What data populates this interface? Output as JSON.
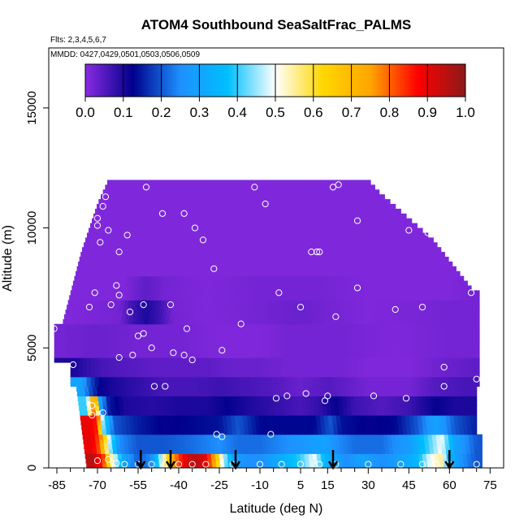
{
  "chart_data": {
    "type": "heatmap",
    "title": "ATOM4 Southbound SeaSaltFrac_PALMS",
    "subtitle_flights": "Flts: 2,3,4,5,6,7",
    "subtitle_dates": "MMDD: 0427,0429,0501,0503,0506,0509",
    "xlabel": "Latitude (deg N)",
    "ylabel": "Altitude (m)",
    "xlim": [
      -88,
      80
    ],
    "ylim": [
      0,
      17500
    ],
    "x_ticks": [
      -85,
      -70,
      -55,
      -40,
      -25,
      -10,
      5,
      15,
      30,
      45,
      60,
      75
    ],
    "x_tick_labels": [
      "-85",
      "-70",
      "-55",
      "-40",
      "-25",
      "-10",
      "5",
      "15",
      "30",
      "45",
      "60",
      "75"
    ],
    "x_minor_ticks": [
      -80,
      -75,
      -65,
      -60,
      -50,
      -45,
      -35,
      -30,
      -20,
      -15,
      -5,
      0,
      10,
      20,
      25,
      35,
      40,
      50,
      55,
      65,
      70
    ],
    "y_ticks": [
      0,
      5000,
      10000,
      15000
    ],
    "y_tick_labels": [
      "0",
      "5000",
      "10000",
      "15000"
    ],
    "colorbar": {
      "range": [
        0,
        1
      ],
      "tick_values": [
        0.0,
        0.1,
        0.2,
        0.3,
        0.4,
        0.5,
        0.6,
        0.7,
        0.8,
        0.9,
        1.0
      ],
      "tick_labels": [
        "0.0",
        "0.1",
        "0.2",
        "0.3",
        "0.4",
        "0.5",
        "0.6",
        "0.7",
        "0.8",
        "0.9",
        "1.0"
      ],
      "colors": [
        "#8a2be2",
        "#00008b",
        "#1e90ff",
        "#00bfff",
        "#ffffff",
        "#ffd700",
        "#ffa500",
        "#ff0000",
        "#8b1a1a"
      ]
    },
    "arrows_latitude": [
      -54,
      -43,
      -19,
      17,
      60
    ],
    "marker_color": "#ffffff",
    "description_note": "",
    "layers": [
      {
        "alt_min": 0,
        "alt_max": 600,
        "values": [
          [
            -72,
            0.95
          ],
          [
            -68,
            0.85
          ],
          [
            -65,
            0.55
          ],
          [
            -60,
            0.3
          ],
          [
            -55,
            0.2
          ],
          [
            -50,
            0.25
          ],
          [
            -46,
            0.5
          ],
          [
            -42,
            0.75
          ],
          [
            -38,
            0.9
          ],
          [
            -34,
            0.95
          ],
          [
            -30,
            0.9
          ],
          [
            -27,
            0.75
          ],
          [
            -24,
            0.5
          ],
          [
            -20,
            0.3
          ],
          [
            -15,
            0.25
          ],
          [
            -10,
            0.25
          ],
          [
            -5,
            0.3
          ],
          [
            0,
            0.35
          ],
          [
            5,
            0.4
          ],
          [
            10,
            0.5
          ],
          [
            14,
            0.35
          ],
          [
            18,
            0.3
          ],
          [
            22,
            0.25
          ],
          [
            28,
            0.3
          ],
          [
            35,
            0.25
          ],
          [
            42,
            0.3
          ],
          [
            48,
            0.35
          ],
          [
            53,
            0.5
          ],
          [
            57,
            0.55
          ],
          [
            60,
            0.35
          ],
          [
            65,
            0.25
          ],
          [
            70,
            0.2
          ]
        ]
      },
      {
        "alt_min": 600,
        "alt_max": 1400,
        "values": [
          [
            -72,
            0.9
          ],
          [
            -69,
            0.8
          ],
          [
            -66,
            0.5
          ],
          [
            -62,
            0.25
          ],
          [
            -55,
            0.2
          ],
          [
            -45,
            0.2
          ],
          [
            -35,
            0.22
          ],
          [
            -25,
            0.25
          ],
          [
            -18,
            0.22
          ],
          [
            -10,
            0.22
          ],
          [
            0,
            0.25
          ],
          [
            8,
            0.28
          ],
          [
            14,
            0.3
          ],
          [
            18,
            0.25
          ],
          [
            25,
            0.22
          ],
          [
            35,
            0.22
          ],
          [
            45,
            0.28
          ],
          [
            52,
            0.4
          ],
          [
            57,
            0.5
          ],
          [
            62,
            0.3
          ],
          [
            70,
            0.2
          ]
        ]
      },
      {
        "alt_min": 1400,
        "alt_max": 2200,
        "values": [
          [
            -73,
            0.9
          ],
          [
            -70,
            0.85
          ],
          [
            -68,
            0.45
          ],
          [
            -64,
            0.2
          ],
          [
            -55,
            0.15
          ],
          [
            -45,
            0.12
          ],
          [
            -35,
            0.13
          ],
          [
            -25,
            0.14
          ],
          [
            -18,
            0.2
          ],
          [
            -10,
            0.13
          ],
          [
            0,
            0.13
          ],
          [
            10,
            0.13
          ],
          [
            16,
            0.2
          ],
          [
            20,
            0.14
          ],
          [
            30,
            0.12
          ],
          [
            40,
            0.13
          ],
          [
            48,
            0.2
          ],
          [
            55,
            0.3
          ],
          [
            62,
            0.2
          ],
          [
            70,
            0.15
          ]
        ]
      },
      {
        "alt_min": 2200,
        "alt_max": 3000,
        "values": [
          [
            -74,
            0.4
          ],
          [
            -71,
            0.85
          ],
          [
            -69,
            0.3
          ],
          [
            -66,
            0.15
          ],
          [
            -60,
            0.1
          ],
          [
            -50,
            0.09
          ],
          [
            -40,
            0.1
          ],
          [
            -30,
            0.1
          ],
          [
            -22,
            0.12
          ],
          [
            -15,
            0.1
          ],
          [
            -5,
            0.08
          ],
          [
            5,
            0.06
          ],
          [
            12,
            0.08
          ],
          [
            18,
            0.12
          ],
          [
            25,
            0.07
          ],
          [
            35,
            0.05
          ],
          [
            45,
            0.07
          ],
          [
            55,
            0.12
          ],
          [
            62,
            0.1
          ],
          [
            70,
            0.1
          ]
        ]
      },
      {
        "alt_min": 3000,
        "alt_max": 3800,
        "values": [
          [
            -76,
            0.3
          ],
          [
            -73,
            0.2
          ],
          [
            -69,
            0.12
          ],
          [
            -64,
            0.1
          ],
          [
            -55,
            0.08
          ],
          [
            -45,
            0.06
          ],
          [
            -35,
            0.06
          ],
          [
            -25,
            0.07
          ],
          [
            -15,
            0.06
          ],
          [
            -5,
            0.05
          ],
          [
            5,
            0.03
          ],
          [
            15,
            0.05
          ],
          [
            20,
            0.04
          ],
          [
            30,
            0.02
          ],
          [
            45,
            0.02
          ],
          [
            55,
            0.05
          ],
          [
            65,
            0.06
          ],
          [
            70,
            0.06
          ]
        ]
      },
      {
        "alt_min": 3800,
        "alt_max": 4600,
        "values": [
          [
            -78,
            0.1
          ],
          [
            -74,
            0.08
          ],
          [
            -68,
            0.06
          ],
          [
            -60,
            0.05
          ],
          [
            -50,
            0.04
          ],
          [
            -40,
            0.04
          ],
          [
            -30,
            0.04
          ],
          [
            -20,
            0.03
          ],
          [
            -10,
            0.03
          ],
          [
            0,
            0.02
          ],
          [
            10,
            0.02
          ],
          [
            20,
            0.02
          ],
          [
            30,
            0.01
          ],
          [
            45,
            0.01
          ],
          [
            60,
            0.03
          ],
          [
            70,
            0.04
          ]
        ]
      },
      {
        "alt_min": 4600,
        "alt_max": 6000,
        "values": [
          [
            -84,
            0.02
          ],
          [
            -70,
            0.03
          ],
          [
            -55,
            0.02
          ],
          [
            -40,
            0.02
          ],
          [
            -25,
            0.01
          ],
          [
            -10,
            0.01
          ],
          [
            0,
            0.02
          ],
          [
            10,
            0.02
          ],
          [
            20,
            0.02
          ],
          [
            40,
            0.01
          ],
          [
            60,
            0.02
          ],
          [
            70,
            0.02
          ]
        ]
      },
      {
        "alt_min": 6000,
        "alt_max": 7000,
        "values": [
          [
            -80,
            0.01
          ],
          [
            -62,
            0.02
          ],
          [
            -57,
            0.07
          ],
          [
            -52,
            0.1
          ],
          [
            -47,
            0.07
          ],
          [
            -42,
            0.02
          ],
          [
            -30,
            0.01
          ],
          [
            -10,
            0.02
          ],
          [
            5,
            0.03
          ],
          [
            15,
            0.02
          ],
          [
            30,
            0.01
          ],
          [
            60,
            0.02
          ],
          [
            70,
            0.02
          ]
        ]
      },
      {
        "alt_min": 7000,
        "alt_max": 8000,
        "values": [
          [
            -78,
            0.01
          ],
          [
            -60,
            0.01
          ],
          [
            -52,
            0.04
          ],
          [
            -45,
            0.02
          ],
          [
            -30,
            0.01
          ],
          [
            -10,
            0.02
          ],
          [
            10,
            0.02
          ],
          [
            30,
            0.01
          ],
          [
            60,
            0.01
          ],
          [
            70,
            0.02
          ]
        ]
      },
      {
        "alt_min": 8000,
        "alt_max": 12000,
        "values": [
          [
            -80,
            0.01
          ],
          [
            -60,
            0.01
          ],
          [
            -40,
            0.01
          ],
          [
            -20,
            0.01
          ],
          [
            0,
            0.01
          ],
          [
            20,
            0.01
          ],
          [
            40,
            0.01
          ],
          [
            60,
            0.01
          ]
        ]
      }
    ],
    "observations": [
      [
        -86,
        5800
      ],
      [
        -77,
        9300
      ],
      [
        -76,
        9600
      ],
      [
        -73,
        6700
      ],
      [
        -71,
        7300
      ],
      [
        -70,
        10400
      ],
      [
        -70,
        10100
      ],
      [
        -69,
        9400
      ],
      [
        -68,
        10900
      ],
      [
        -67,
        11300
      ],
      [
        -66,
        9900
      ],
      [
        -65,
        6800
      ],
      [
        -63,
        7600
      ],
      [
        -62,
        9000
      ],
      [
        -62,
        4600
      ],
      [
        -62,
        7200
      ],
      [
        -59,
        9700
      ],
      [
        -58,
        6500
      ],
      [
        -57,
        4700
      ],
      [
        -55,
        5500
      ],
      [
        -53,
        6800
      ],
      [
        -53,
        5600
      ],
      [
        -52,
        11700
      ],
      [
        -50,
        5000
      ],
      [
        -49,
        3400
      ],
      [
        -46,
        10600
      ],
      [
        -45,
        3400
      ],
      [
        -43,
        6800
      ],
      [
        -42,
        4800
      ],
      [
        -38,
        10600
      ],
      [
        -38,
        4700
      ],
      [
        -37,
        5800
      ],
      [
        -35,
        4500
      ],
      [
        -34,
        10000
      ],
      [
        -31,
        9500
      ],
      [
        -27,
        8300
      ],
      [
        -24,
        4900
      ],
      [
        -24,
        1300
      ],
      [
        -17,
        6000
      ],
      [
        -12,
        11700
      ],
      [
        -8,
        11000
      ],
      [
        -4,
        2900
      ],
      [
        -3,
        7300
      ],
      [
        0,
        3000
      ],
      [
        5,
        6700
      ],
      [
        7,
        3100
      ],
      [
        9,
        9000
      ],
      [
        11,
        9000
      ],
      [
        12,
        9000
      ],
      [
        14,
        2800
      ],
      [
        15,
        3000
      ],
      [
        18,
        6300
      ],
      [
        26,
        7500
      ],
      [
        26,
        10300
      ],
      [
        32,
        3000
      ],
      [
        40,
        6600
      ],
      [
        44,
        2900
      ],
      [
        45,
        9900
      ],
      [
        50,
        6700
      ],
      [
        52,
        9800
      ],
      [
        58,
        3400
      ],
      [
        58,
        4200
      ],
      [
        68,
        7300
      ],
      [
        70,
        3700
      ],
      [
        -79,
        4300
      ],
      [
        -72,
        2600
      ],
      [
        -72,
        2200
      ],
      [
        -68,
        2300
      ],
      [
        17,
        11700
      ],
      [
        19,
        11800
      ],
      [
        -26,
        1400
      ],
      [
        -6,
        1400
      ],
      [
        -70,
        300
      ],
      [
        -66,
        350
      ],
      [
        -63,
        200
      ],
      [
        -60,
        150
      ],
      [
        -55,
        150
      ],
      [
        -50,
        150
      ],
      [
        -45,
        150
      ],
      [
        -40,
        150
      ],
      [
        -35,
        150
      ],
      [
        -30,
        150
      ],
      [
        -20,
        150
      ],
      [
        -10,
        150
      ],
      [
        -2,
        150
      ],
      [
        5,
        150
      ],
      [
        12,
        150
      ],
      [
        18,
        150
      ],
      [
        30,
        150
      ],
      [
        42,
        150
      ],
      [
        50,
        150
      ],
      [
        55,
        150
      ],
      [
        60,
        150
      ],
      [
        70,
        150
      ]
    ]
  }
}
